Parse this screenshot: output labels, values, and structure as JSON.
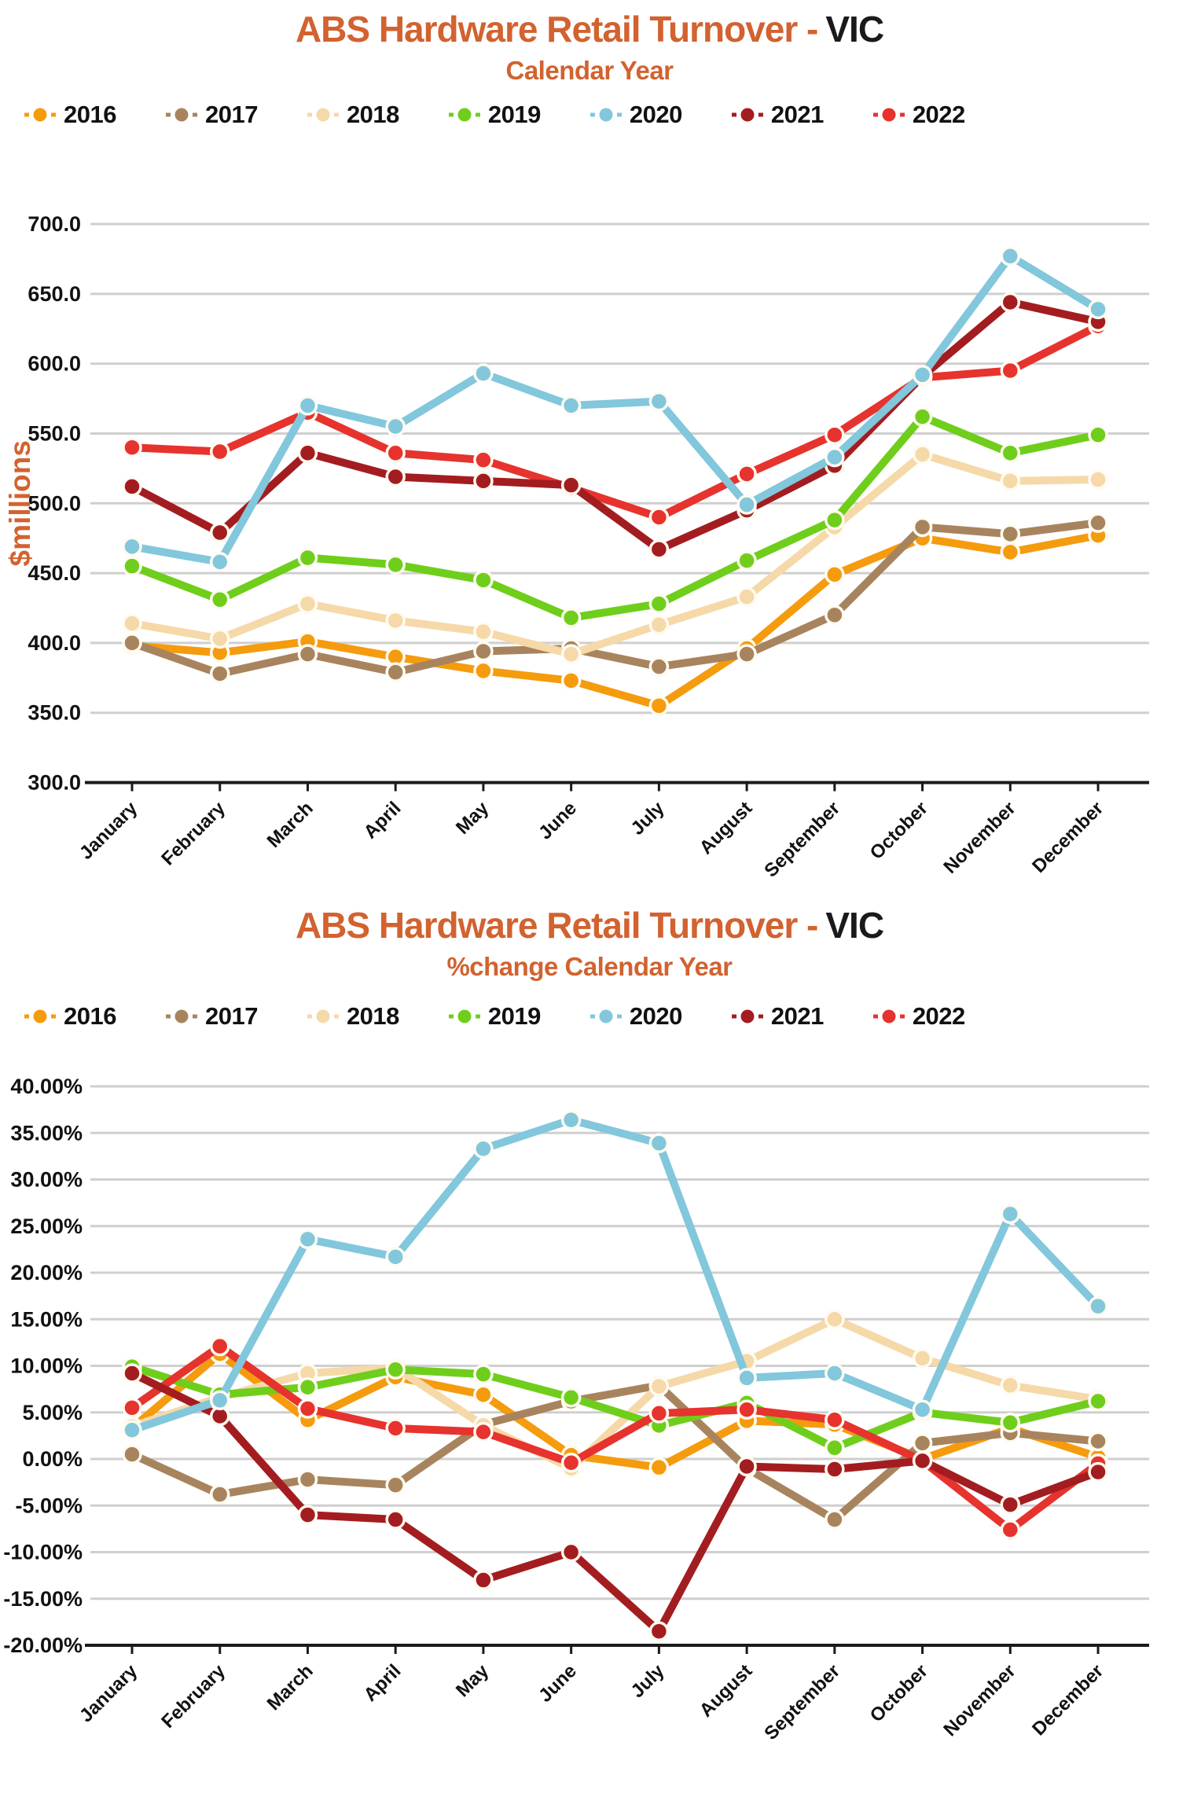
{
  "chart_data": [
    {
      "type": "line",
      "title": "ABS Hardware Retail Turnover -",
      "title_region": "VIC",
      "subtitle": "Calendar Year",
      "ylabel": "$millions",
      "y_min": 300,
      "y_max": 700,
      "y_step": 50,
      "y_format": "number1dp",
      "grid": true,
      "legend_position": "top",
      "accent_color": "#D2622F",
      "grid_color": "#CFCFCF",
      "axis_color": "#1A1A1A",
      "categories": [
        "January",
        "February",
        "March",
        "April",
        "May",
        "June",
        "July",
        "August",
        "September",
        "October",
        "November",
        "December"
      ],
      "series": [
        {
          "name": "2016",
          "color": "#F59B0E",
          "values": [
            398,
            393,
            401,
            390,
            380,
            373,
            355,
            396,
            449,
            475,
            465,
            477
          ]
        },
        {
          "name": "2017",
          "color": "#A8845E",
          "values": [
            400,
            378,
            392,
            379,
            394,
            396,
            383,
            392,
            420,
            483,
            478,
            486
          ]
        },
        {
          "name": "2018",
          "color": "#F5D9A8",
          "values": [
            414,
            403,
            428,
            416,
            408,
            392,
            413,
            433,
            483,
            535,
            516,
            517
          ]
        },
        {
          "name": "2019",
          "color": "#6FCE1B",
          "values": [
            455,
            431,
            461,
            456,
            445,
            418,
            428,
            459,
            488,
            562,
            536,
            549
          ]
        },
        {
          "name": "2020",
          "color": "#82C7DC",
          "values": [
            469,
            458,
            570,
            555,
            593,
            570,
            573,
            499,
            533,
            592,
            677,
            639
          ]
        },
        {
          "name": "2021",
          "color": "#A31D20",
          "values": [
            512,
            479,
            536,
            519,
            516,
            513,
            467,
            495,
            527,
            591,
            644,
            630
          ]
        },
        {
          "name": "2022",
          "color": "#E6332E",
          "values": [
            540,
            537,
            565,
            536,
            531,
            511,
            490,
            521,
            549,
            590,
            595,
            627
          ]
        }
      ]
    },
    {
      "type": "line",
      "title": "ABS Hardware Retail Turnover -",
      "title_region": "VIC",
      "subtitle": "%change Calendar Year",
      "ylabel": "",
      "y_min": -20,
      "y_max": 40,
      "y_step": 5,
      "y_format": "percent2dp",
      "grid": true,
      "legend_position": "top",
      "accent_color": "#D2622F",
      "grid_color": "#CFCFCF",
      "axis_color": "#1A1A1A",
      "categories": [
        "January",
        "February",
        "March",
        "April",
        "May",
        "June",
        "July",
        "August",
        "September",
        "October",
        "November",
        "December"
      ],
      "series": [
        {
          "name": "2016",
          "color": "#F59B0E",
          "values": [
            3.3,
            11.3,
            4.2,
            8.8,
            6.9,
            0.4,
            -0.9,
            4.1,
            3.7,
            0.0,
            3.3,
            0.2
          ]
        },
        {
          "name": "2017",
          "color": "#A8845E",
          "values": [
            0.5,
            -3.8,
            -2.2,
            -2.8,
            3.7,
            6.2,
            7.9,
            -1.0,
            -6.5,
            1.7,
            2.8,
            1.9
          ]
        },
        {
          "name": "2018",
          "color": "#F5D9A8",
          "values": [
            3.5,
            6.6,
            9.2,
            9.8,
            3.6,
            -1.0,
            7.8,
            10.5,
            15.0,
            10.8,
            7.9,
            6.4
          ]
        },
        {
          "name": "2019",
          "color": "#6FCE1B",
          "values": [
            9.9,
            6.9,
            7.7,
            9.6,
            9.1,
            6.6,
            3.6,
            6.0,
            1.2,
            5.0,
            3.9,
            6.2
          ]
        },
        {
          "name": "2020",
          "color": "#82C7DC",
          "values": [
            3.1,
            6.3,
            23.6,
            21.7,
            33.3,
            36.4,
            33.9,
            8.7,
            9.2,
            5.3,
            26.3,
            16.4
          ]
        },
        {
          "name": "2021",
          "color": "#A31D20",
          "values": [
            9.2,
            4.6,
            -6.0,
            -6.5,
            -13.0,
            -10.0,
            -18.5,
            -0.8,
            -1.1,
            -0.2,
            -4.9,
            -1.4
          ]
        },
        {
          "name": "2022",
          "color": "#E6332E",
          "values": [
            5.5,
            12.1,
            5.4,
            3.3,
            2.9,
            -0.4,
            4.9,
            5.3,
            4.2,
            -0.2,
            -7.6,
            -0.5
          ]
        }
      ]
    }
  ]
}
